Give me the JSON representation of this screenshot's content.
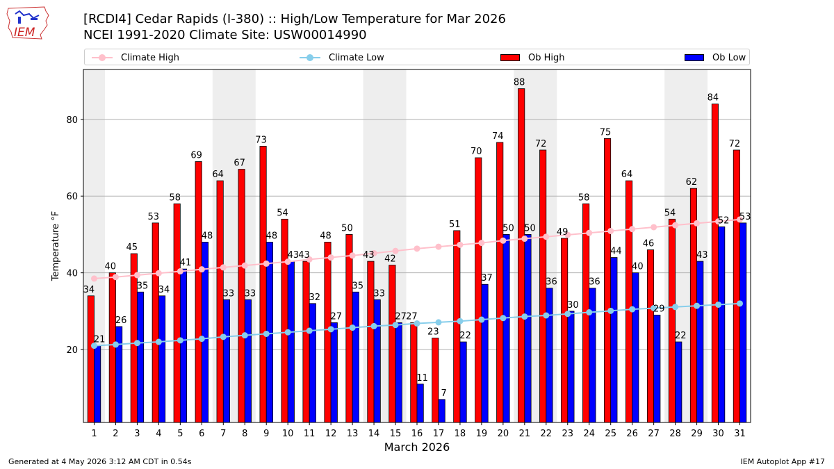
{
  "header": {
    "title_line1": "[RCDI4] Cedar Rapids (I-380) :: High/Low Temperature for Mar 2026",
    "title_line2": "NCEI 1991-2020 Climate Site: USW00014990"
  },
  "logo": {
    "text": "IEM",
    "icon": "iowa-state-outline-logo"
  },
  "footer": {
    "left": "Generated at 4 May 2026 3:12 AM CDT in 0.54s",
    "right": "IEM Autoplot App #17"
  },
  "colors": {
    "ob_high": "#ff0000",
    "ob_low": "#0000ff",
    "climate_high": "#ffc0cb",
    "climate_low": "#87ceeb",
    "weekend_shade": "#eeeeee",
    "grid": "#b0b0b0"
  },
  "chart_data": {
    "type": "bar",
    "xlabel": "March 2026",
    "ylabel": "Temperature °F",
    "ylim": [
      1,
      93
    ],
    "yticks": [
      20,
      40,
      60,
      80
    ],
    "grid": "horizontal",
    "legend_position": "top, above plot",
    "categories": [
      "1",
      "2",
      "3",
      "4",
      "5",
      "6",
      "7",
      "8",
      "9",
      "10",
      "11",
      "12",
      "13",
      "14",
      "15",
      "16",
      "17",
      "18",
      "19",
      "20",
      "21",
      "22",
      "23",
      "24",
      "25",
      "26",
      "27",
      "28",
      "29",
      "30",
      "31"
    ],
    "shaded_weekend_days": [
      [
        1,
        1
      ],
      [
        7,
        8
      ],
      [
        14,
        15
      ],
      [
        21,
        22
      ],
      [
        28,
        29
      ]
    ],
    "series": [
      {
        "name": "Ob High",
        "kind": "bar",
        "values": [
          34,
          40,
          45,
          53,
          58,
          69,
          64,
          67,
          73,
          54,
          43,
          48,
          50,
          43,
          42,
          27,
          23,
          51,
          70,
          74,
          88,
          72,
          49,
          58,
          75,
          64,
          46,
          54,
          62,
          84,
          72
        ]
      },
      {
        "name": "Ob Low",
        "kind": "bar",
        "values": [
          21,
          26,
          35,
          34,
          41,
          48,
          33,
          33,
          48,
          43,
          32,
          27,
          35,
          33,
          27,
          11,
          7,
          22,
          37,
          50,
          50,
          36,
          30,
          36,
          44,
          40,
          29,
          22,
          43,
          52,
          53
        ]
      },
      {
        "name": "Climate High",
        "kind": "line",
        "values": [
          38.5,
          38.9,
          39.4,
          39.9,
          40.4,
          40.9,
          41.4,
          41.9,
          42.4,
          42.9,
          43.5,
          44.0,
          44.5,
          45.1,
          45.7,
          46.3,
          46.8,
          47.3,
          47.8,
          48.4,
          48.9,
          49.4,
          49.9,
          50.4,
          50.9,
          51.4,
          51.9,
          52.4,
          52.9,
          53.4,
          53.9
        ]
      },
      {
        "name": "Climate Low",
        "kind": "line",
        "values": [
          21.0,
          21.3,
          21.7,
          22.0,
          22.4,
          22.8,
          23.3,
          23.7,
          24.1,
          24.5,
          24.9,
          25.3,
          25.7,
          26.1,
          26.4,
          26.8,
          27.1,
          27.4,
          27.8,
          28.2,
          28.6,
          28.9,
          29.3,
          29.7,
          30.1,
          30.5,
          30.8,
          31.1,
          31.4,
          31.7,
          32.0
        ]
      }
    ]
  }
}
